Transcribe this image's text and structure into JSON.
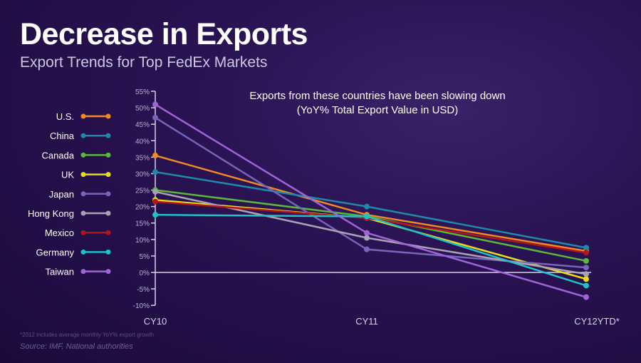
{
  "title": "Decrease in Exports",
  "subtitle": "Export Trends for Top FedEx Markets",
  "footnote": "*2012 includes average monthly YoY% export growth",
  "source": "Source: IMF, National authorities",
  "chart_data": {
    "type": "line",
    "title": "Exports from these countries have been slowing down",
    "subtitle": "(YoY% Total Export Value in USD)",
    "categories": [
      "CY10",
      "CY11",
      "CY12YTD*"
    ],
    "ylim": [
      -10,
      55
    ],
    "yticks": [
      -10,
      -5,
      0,
      5,
      10,
      15,
      20,
      25,
      30,
      35,
      40,
      45,
      50,
      55
    ],
    "ytick_labels": [
      "-10%",
      "-5%",
      "0%",
      "5%",
      "10%",
      "15%",
      "20%",
      "25%",
      "30%",
      "35%",
      "40%",
      "45%",
      "50%",
      "55%"
    ],
    "legend_position": "left",
    "series": [
      {
        "name": "U.S.",
        "color": "#f08a24",
        "values": [
          35.5,
          17.5,
          6.5
        ]
      },
      {
        "name": "China",
        "color": "#1f8aa8",
        "values": [
          30.5,
          20,
          7.5
        ]
      },
      {
        "name": "Canada",
        "color": "#5cb83a",
        "values": [
          25,
          17,
          3.5
        ]
      },
      {
        "name": "UK",
        "color": "#e8dc1c",
        "values": [
          22,
          16.5,
          -2
        ]
      },
      {
        "name": "Japan",
        "color": "#7766b8",
        "values": [
          47,
          7,
          1.5
        ]
      },
      {
        "name": "Hong Kong",
        "color": "#a8a3b4",
        "values": [
          24.5,
          10.5,
          -0.5
        ]
      },
      {
        "name": "Mexico",
        "color": "#b0161a",
        "values": [
          21.5,
          16.5,
          6
        ]
      },
      {
        "name": "Germany",
        "color": "#1ec2c8",
        "values": [
          17.5,
          17,
          -4
        ]
      },
      {
        "name": "Taiwan",
        "color": "#a064d8",
        "values": [
          51,
          12,
          -7.5
        ]
      }
    ]
  }
}
